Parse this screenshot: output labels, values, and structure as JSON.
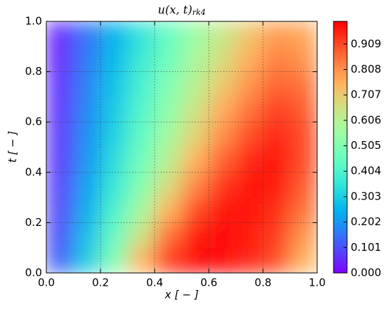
{
  "chart_data": {
    "type": "heatmap",
    "title": "u(x, t)",
    "title_subscript": "rk4",
    "x_label": "x [ − ]",
    "y_label": "t [ − ]",
    "colormap": "rainbow",
    "x": [
      0.05,
      0.15,
      0.25,
      0.35,
      0.45,
      0.55,
      0.65,
      0.75,
      0.85,
      0.95
    ],
    "y": [
      0.05,
      0.15,
      0.25,
      0.35,
      0.45,
      0.55,
      0.65,
      0.75,
      0.85,
      0.95
    ],
    "z": [
      [
        0.12,
        0.3,
        0.5,
        0.75,
        0.93,
        0.98,
        0.98,
        0.95,
        0.9,
        0.75
      ],
      [
        0.1,
        0.27,
        0.45,
        0.65,
        0.85,
        0.96,
        0.98,
        0.96,
        0.92,
        0.8
      ],
      [
        0.09,
        0.24,
        0.4,
        0.57,
        0.75,
        0.9,
        0.97,
        0.97,
        0.94,
        0.85
      ],
      [
        0.08,
        0.22,
        0.36,
        0.51,
        0.67,
        0.82,
        0.93,
        0.97,
        0.96,
        0.88
      ],
      [
        0.07,
        0.2,
        0.33,
        0.47,
        0.61,
        0.75,
        0.87,
        0.95,
        0.97,
        0.9
      ],
      [
        0.07,
        0.19,
        0.31,
        0.44,
        0.57,
        0.69,
        0.81,
        0.9,
        0.95,
        0.9
      ],
      [
        0.06,
        0.18,
        0.29,
        0.41,
        0.53,
        0.65,
        0.76,
        0.85,
        0.92,
        0.88
      ],
      [
        0.06,
        0.17,
        0.28,
        0.39,
        0.5,
        0.61,
        0.71,
        0.8,
        0.87,
        0.85
      ],
      [
        0.05,
        0.16,
        0.26,
        0.37,
        0.47,
        0.58,
        0.67,
        0.76,
        0.83,
        0.8
      ],
      [
        0.05,
        0.15,
        0.25,
        0.35,
        0.45,
        0.55,
        0.64,
        0.72,
        0.79,
        0.77
      ]
    ],
    "xlim": [
      0,
      1
    ],
    "ylim": [
      0,
      1
    ],
    "clim": [
      0,
      0.999
    ],
    "xticks": [
      {
        "value": 0,
        "label": "0.0"
      },
      0.2,
      0.4,
      0.6,
      0.8,
      {
        "value": 1,
        "label": "1.0"
      }
    ],
    "yticks": [
      {
        "value": 0,
        "label": "0.0"
      },
      0.2,
      0.4,
      0.6,
      0.8,
      {
        "value": 1,
        "label": "1.0"
      }
    ],
    "cticks": [
      {
        "value": 0,
        "label": "0.000"
      },
      0.101,
      0.202,
      0.303,
      0.404,
      0.505,
      0.606,
      0.707,
      0.808,
      0.909
    ],
    "grid": true
  }
}
